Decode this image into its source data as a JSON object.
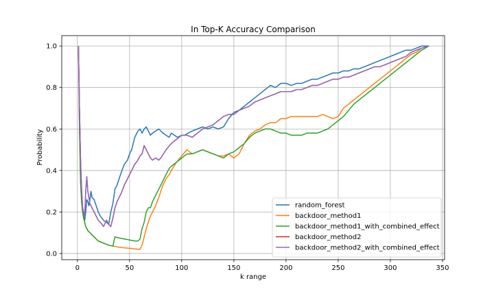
{
  "chart_data": {
    "type": "line",
    "title": "In Top-K Accuracy Comparison",
    "xlabel": "k range",
    "ylabel": "Probability",
    "xlim": [
      -15,
      352
    ],
    "ylim": [
      -0.03,
      1.05
    ],
    "xticks": [
      0,
      50,
      100,
      150,
      200,
      250,
      300,
      350
    ],
    "yticks": [
      0.0,
      0.2,
      0.4,
      0.6,
      0.8,
      1.0
    ],
    "xtick_labels": [
      "0",
      "50",
      "100",
      "150",
      "200",
      "250",
      "300",
      "350"
    ],
    "ytick_labels": [
      "0.0",
      "0.2",
      "0.4",
      "0.6",
      "0.8",
      "1.0"
    ],
    "grid": true,
    "legend_position": "lower-right",
    "series": [
      {
        "name": "random_forest",
        "color": "#1f77b4",
        "x": [
          1,
          2,
          3,
          4,
          5,
          6,
          7,
          8,
          9,
          10,
          11,
          12,
          13,
          14,
          16,
          18,
          20,
          22,
          25,
          28,
          30,
          32,
          34,
          36,
          38,
          40,
          42,
          45,
          48,
          50,
          52,
          55,
          58,
          60,
          62,
          64,
          66,
          68,
          70,
          72,
          75,
          78,
          80,
          82,
          85,
          88,
          90,
          93,
          96,
          100,
          103,
          106,
          110,
          115,
          120,
          125,
          130,
          135,
          140,
          145,
          150,
          155,
          160,
          165,
          170,
          175,
          180,
          185,
          190,
          195,
          200,
          205,
          210,
          215,
          220,
          225,
          230,
          235,
          240,
          245,
          250,
          255,
          260,
          265,
          270,
          275,
          280,
          285,
          290,
          295,
          300,
          305,
          310,
          315,
          320,
          325,
          330,
          337
        ],
        "y": [
          1.0,
          0.7,
          0.45,
          0.32,
          0.22,
          0.18,
          0.16,
          0.2,
          0.26,
          0.25,
          0.23,
          0.26,
          0.3,
          0.27,
          0.26,
          0.23,
          0.2,
          0.18,
          0.16,
          0.15,
          0.14,
          0.2,
          0.24,
          0.31,
          0.33,
          0.36,
          0.39,
          0.43,
          0.45,
          0.48,
          0.5,
          0.56,
          0.59,
          0.6,
          0.58,
          0.6,
          0.61,
          0.59,
          0.57,
          0.58,
          0.59,
          0.6,
          0.59,
          0.58,
          0.57,
          0.56,
          0.58,
          0.57,
          0.56,
          0.57,
          0.57,
          0.58,
          0.59,
          0.6,
          0.61,
          0.6,
          0.61,
          0.6,
          0.61,
          0.65,
          0.68,
          0.69,
          0.71,
          0.73,
          0.75,
          0.77,
          0.79,
          0.81,
          0.8,
          0.82,
          0.82,
          0.81,
          0.82,
          0.82,
          0.83,
          0.84,
          0.84,
          0.85,
          0.86,
          0.87,
          0.87,
          0.88,
          0.88,
          0.89,
          0.89,
          0.9,
          0.91,
          0.92,
          0.93,
          0.94,
          0.95,
          0.96,
          0.97,
          0.98,
          0.98,
          0.99,
          1.0,
          1.0
        ]
      },
      {
        "name": "backdoor_method1",
        "color": "#ff7f0e",
        "x": [
          1,
          2,
          3,
          4,
          5,
          6,
          7,
          8,
          10,
          12,
          14,
          16,
          18,
          20,
          25,
          30,
          35,
          40,
          45,
          50,
          55,
          60,
          62,
          64,
          66,
          68,
          70,
          72,
          75,
          78,
          80,
          82,
          85,
          88,
          90,
          95,
          100,
          105,
          110,
          115,
          120,
          125,
          130,
          135,
          140,
          145,
          150,
          155,
          160,
          165,
          170,
          175,
          180,
          185,
          190,
          195,
          200,
          205,
          210,
          215,
          220,
          225,
          230,
          235,
          240,
          245,
          250,
          255,
          260,
          265,
          270,
          275,
          280,
          285,
          290,
          295,
          300,
          305,
          310,
          315,
          320,
          325,
          330,
          337
        ],
        "y": [
          1.0,
          0.6,
          0.35,
          0.25,
          0.2,
          0.17,
          0.15,
          0.13,
          0.11,
          0.1,
          0.09,
          0.08,
          0.07,
          0.06,
          0.05,
          0.04,
          0.035,
          0.03,
          0.027,
          0.025,
          0.022,
          0.02,
          0.04,
          0.08,
          0.12,
          0.15,
          0.18,
          0.2,
          0.23,
          0.27,
          0.3,
          0.33,
          0.36,
          0.38,
          0.4,
          0.44,
          0.47,
          0.5,
          0.48,
          0.49,
          0.5,
          0.49,
          0.48,
          0.47,
          0.47,
          0.48,
          0.46,
          0.48,
          0.53,
          0.57,
          0.59,
          0.6,
          0.62,
          0.63,
          0.63,
          0.65,
          0.65,
          0.66,
          0.66,
          0.66,
          0.66,
          0.66,
          0.66,
          0.67,
          0.66,
          0.65,
          0.66,
          0.7,
          0.72,
          0.74,
          0.76,
          0.78,
          0.8,
          0.82,
          0.84,
          0.86,
          0.88,
          0.9,
          0.92,
          0.94,
          0.96,
          0.97,
          0.99,
          1.0
        ]
      },
      {
        "name": "backdoor_method1_with_combined_effect",
        "color": "#2ca02c",
        "x": [
          1,
          2,
          3,
          4,
          5,
          6,
          7,
          8,
          10,
          12,
          14,
          16,
          18,
          20,
          25,
          30,
          34,
          36,
          40,
          45,
          50,
          55,
          58,
          60,
          62,
          64,
          66,
          68,
          70,
          72,
          75,
          78,
          80,
          82,
          85,
          88,
          90,
          95,
          100,
          105,
          110,
          115,
          120,
          125,
          130,
          135,
          140,
          145,
          150,
          155,
          160,
          165,
          170,
          175,
          180,
          185,
          190,
          195,
          200,
          205,
          210,
          215,
          220,
          225,
          230,
          235,
          240,
          245,
          250,
          255,
          260,
          265,
          270,
          275,
          280,
          285,
          290,
          295,
          300,
          305,
          310,
          315,
          320,
          325,
          330,
          337
        ],
        "y": [
          1.0,
          0.6,
          0.35,
          0.25,
          0.2,
          0.17,
          0.15,
          0.13,
          0.11,
          0.1,
          0.09,
          0.08,
          0.07,
          0.06,
          0.05,
          0.04,
          0.035,
          0.08,
          0.075,
          0.07,
          0.065,
          0.06,
          0.06,
          0.07,
          0.12,
          0.15,
          0.2,
          0.22,
          0.22,
          0.25,
          0.28,
          0.31,
          0.33,
          0.35,
          0.38,
          0.41,
          0.42,
          0.44,
          0.46,
          0.48,
          0.48,
          0.49,
          0.5,
          0.49,
          0.48,
          0.47,
          0.46,
          0.48,
          0.49,
          0.51,
          0.53,
          0.56,
          0.58,
          0.59,
          0.6,
          0.6,
          0.59,
          0.58,
          0.58,
          0.57,
          0.57,
          0.57,
          0.58,
          0.58,
          0.58,
          0.59,
          0.6,
          0.62,
          0.64,
          0.66,
          0.69,
          0.72,
          0.74,
          0.76,
          0.78,
          0.8,
          0.82,
          0.84,
          0.86,
          0.88,
          0.9,
          0.92,
          0.94,
          0.96,
          0.98,
          1.0
        ]
      },
      {
        "name": "backdoor_method2",
        "color": "#d62728",
        "x": [
          1,
          2,
          3,
          4,
          5,
          6,
          7,
          8,
          9,
          10,
          12,
          14,
          16,
          18,
          20,
          22,
          25,
          28,
          30,
          32,
          34,
          36,
          38,
          40,
          42,
          45,
          48,
          50,
          52,
          55,
          58,
          60,
          62,
          64,
          66,
          68,
          70,
          72,
          75,
          78,
          80,
          85,
          90,
          95,
          100,
          105,
          110,
          115,
          120,
          125,
          130,
          135,
          140,
          145,
          150,
          155,
          160,
          165,
          170,
          175,
          180,
          185,
          190,
          195,
          200,
          205,
          210,
          215,
          220,
          225,
          230,
          235,
          240,
          245,
          250,
          255,
          260,
          265,
          270,
          275,
          280,
          285,
          290,
          295,
          300,
          305,
          310,
          315,
          320,
          325,
          330,
          337
        ],
        "y": [
          1.0,
          0.7,
          0.45,
          0.3,
          0.22,
          0.2,
          0.18,
          0.3,
          0.37,
          0.3,
          0.24,
          0.22,
          0.2,
          0.18,
          0.16,
          0.15,
          0.13,
          0.16,
          0.14,
          0.13,
          0.17,
          0.22,
          0.25,
          0.27,
          0.29,
          0.33,
          0.36,
          0.38,
          0.4,
          0.43,
          0.45,
          0.47,
          0.48,
          0.52,
          0.5,
          0.48,
          0.46,
          0.45,
          0.46,
          0.45,
          0.46,
          0.5,
          0.53,
          0.55,
          0.57,
          0.57,
          0.56,
          0.58,
          0.6,
          0.61,
          0.62,
          0.64,
          0.66,
          0.67,
          0.67,
          0.69,
          0.7,
          0.71,
          0.73,
          0.74,
          0.75,
          0.76,
          0.77,
          0.78,
          0.78,
          0.78,
          0.79,
          0.79,
          0.8,
          0.81,
          0.81,
          0.82,
          0.83,
          0.84,
          0.84,
          0.85,
          0.85,
          0.86,
          0.87,
          0.88,
          0.89,
          0.9,
          0.9,
          0.91,
          0.92,
          0.93,
          0.94,
          0.95,
          0.97,
          0.98,
          0.99,
          1.0
        ]
      },
      {
        "name": "backdoor_method2_with_combined_effect",
        "color": "#9467bd",
        "x": [
          1,
          2,
          3,
          4,
          5,
          6,
          7,
          8,
          9,
          10,
          12,
          14,
          16,
          18,
          20,
          22,
          25,
          28,
          30,
          32,
          34,
          36,
          38,
          40,
          42,
          45,
          48,
          50,
          52,
          55,
          58,
          60,
          62,
          64,
          66,
          68,
          70,
          72,
          75,
          78,
          80,
          85,
          90,
          95,
          100,
          105,
          110,
          115,
          120,
          125,
          130,
          135,
          140,
          145,
          150,
          155,
          160,
          165,
          170,
          175,
          180,
          185,
          190,
          195,
          200,
          205,
          210,
          215,
          220,
          225,
          230,
          235,
          240,
          245,
          250,
          255,
          260,
          265,
          270,
          275,
          280,
          285,
          290,
          295,
          300,
          305,
          310,
          315,
          320,
          325,
          330,
          337
        ],
        "y": [
          1.0,
          0.7,
          0.45,
          0.3,
          0.22,
          0.2,
          0.18,
          0.3,
          0.37,
          0.3,
          0.24,
          0.22,
          0.2,
          0.18,
          0.16,
          0.15,
          0.13,
          0.16,
          0.14,
          0.13,
          0.17,
          0.22,
          0.25,
          0.27,
          0.29,
          0.33,
          0.36,
          0.38,
          0.4,
          0.43,
          0.45,
          0.47,
          0.48,
          0.52,
          0.5,
          0.48,
          0.46,
          0.45,
          0.46,
          0.45,
          0.46,
          0.5,
          0.53,
          0.55,
          0.57,
          0.57,
          0.56,
          0.58,
          0.6,
          0.61,
          0.62,
          0.64,
          0.66,
          0.67,
          0.67,
          0.69,
          0.7,
          0.71,
          0.73,
          0.74,
          0.75,
          0.76,
          0.77,
          0.78,
          0.78,
          0.78,
          0.79,
          0.79,
          0.8,
          0.81,
          0.81,
          0.82,
          0.83,
          0.84,
          0.84,
          0.85,
          0.85,
          0.86,
          0.87,
          0.88,
          0.89,
          0.9,
          0.9,
          0.91,
          0.92,
          0.93,
          0.94,
          0.95,
          0.97,
          0.98,
          0.99,
          1.0
        ]
      }
    ]
  }
}
